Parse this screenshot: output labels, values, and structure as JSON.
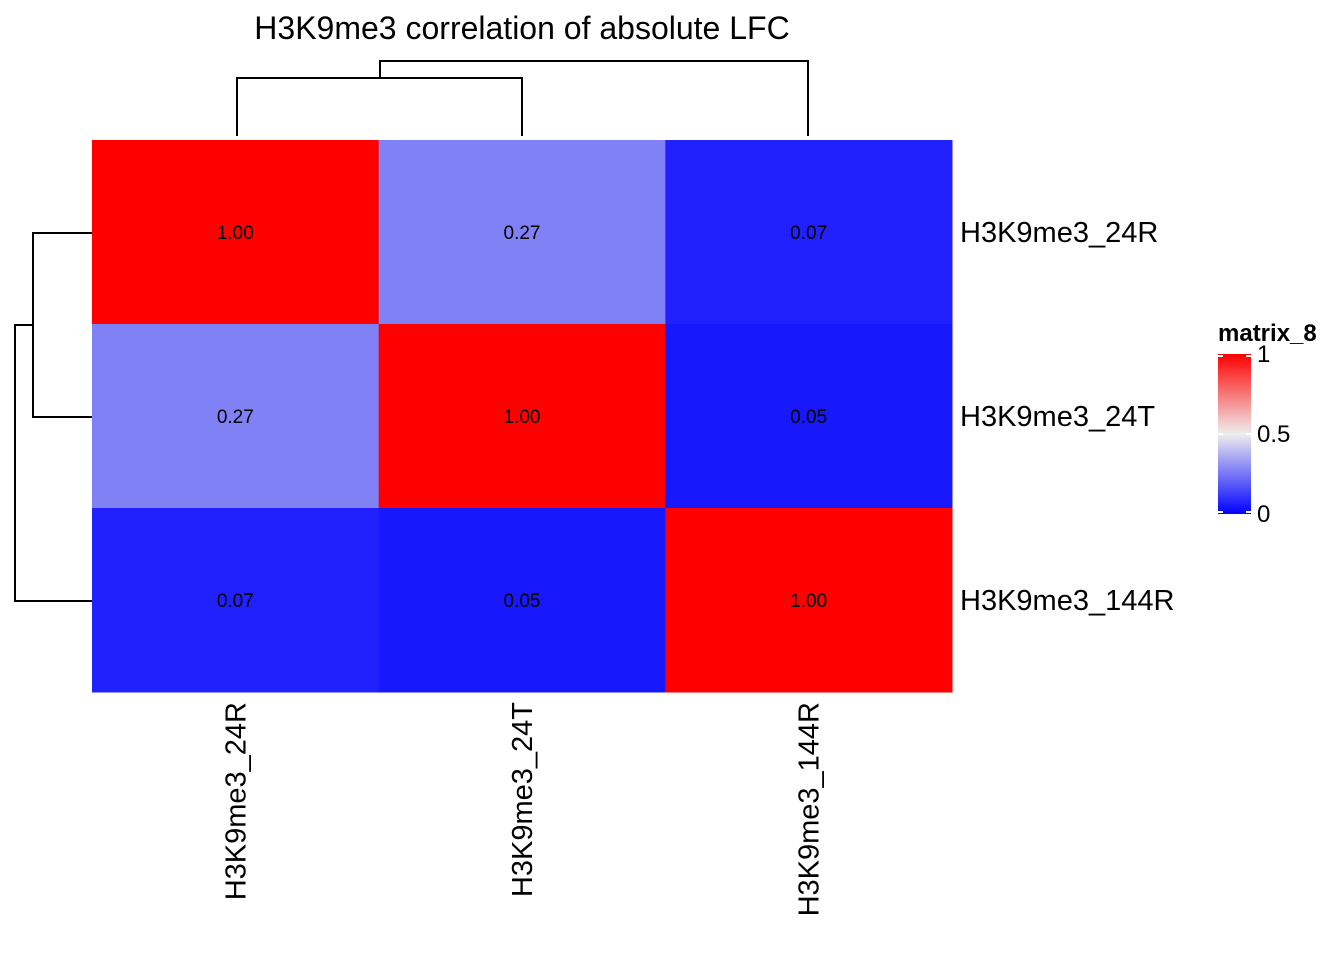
{
  "chart_data": {
    "type": "heatmap",
    "title": "H3K9me3 correlation of absolute LFC",
    "rows": [
      "H3K9me3_24R",
      "H3K9me3_24T",
      "H3K9me3_144R"
    ],
    "columns": [
      "H3K9me3_24R",
      "H3K9me3_24T",
      "H3K9me3_144R"
    ],
    "values": [
      [
        1.0,
        0.27,
        0.07
      ],
      [
        0.27,
        1.0,
        0.05
      ],
      [
        0.07,
        0.05,
        1.0
      ]
    ],
    "cell_labels": [
      [
        "1.00",
        "0.27",
        "0.07"
      ],
      [
        "0.27",
        "1.00",
        "0.05"
      ],
      [
        "0.07",
        "0.05",
        "1.00"
      ]
    ],
    "color_scale": {
      "low": "#0000FF",
      "mid": "#EEEEEE",
      "high": "#FF0000",
      "domain": [
        0,
        0.5,
        1
      ]
    },
    "legend": {
      "title": "matrix_8",
      "ticks": [
        "0",
        "0.5",
        "1"
      ],
      "tick_values": [
        0,
        0.5,
        1
      ],
      "placement": "right"
    },
    "row_dendrogram": true,
    "column_dendrogram": true
  }
}
